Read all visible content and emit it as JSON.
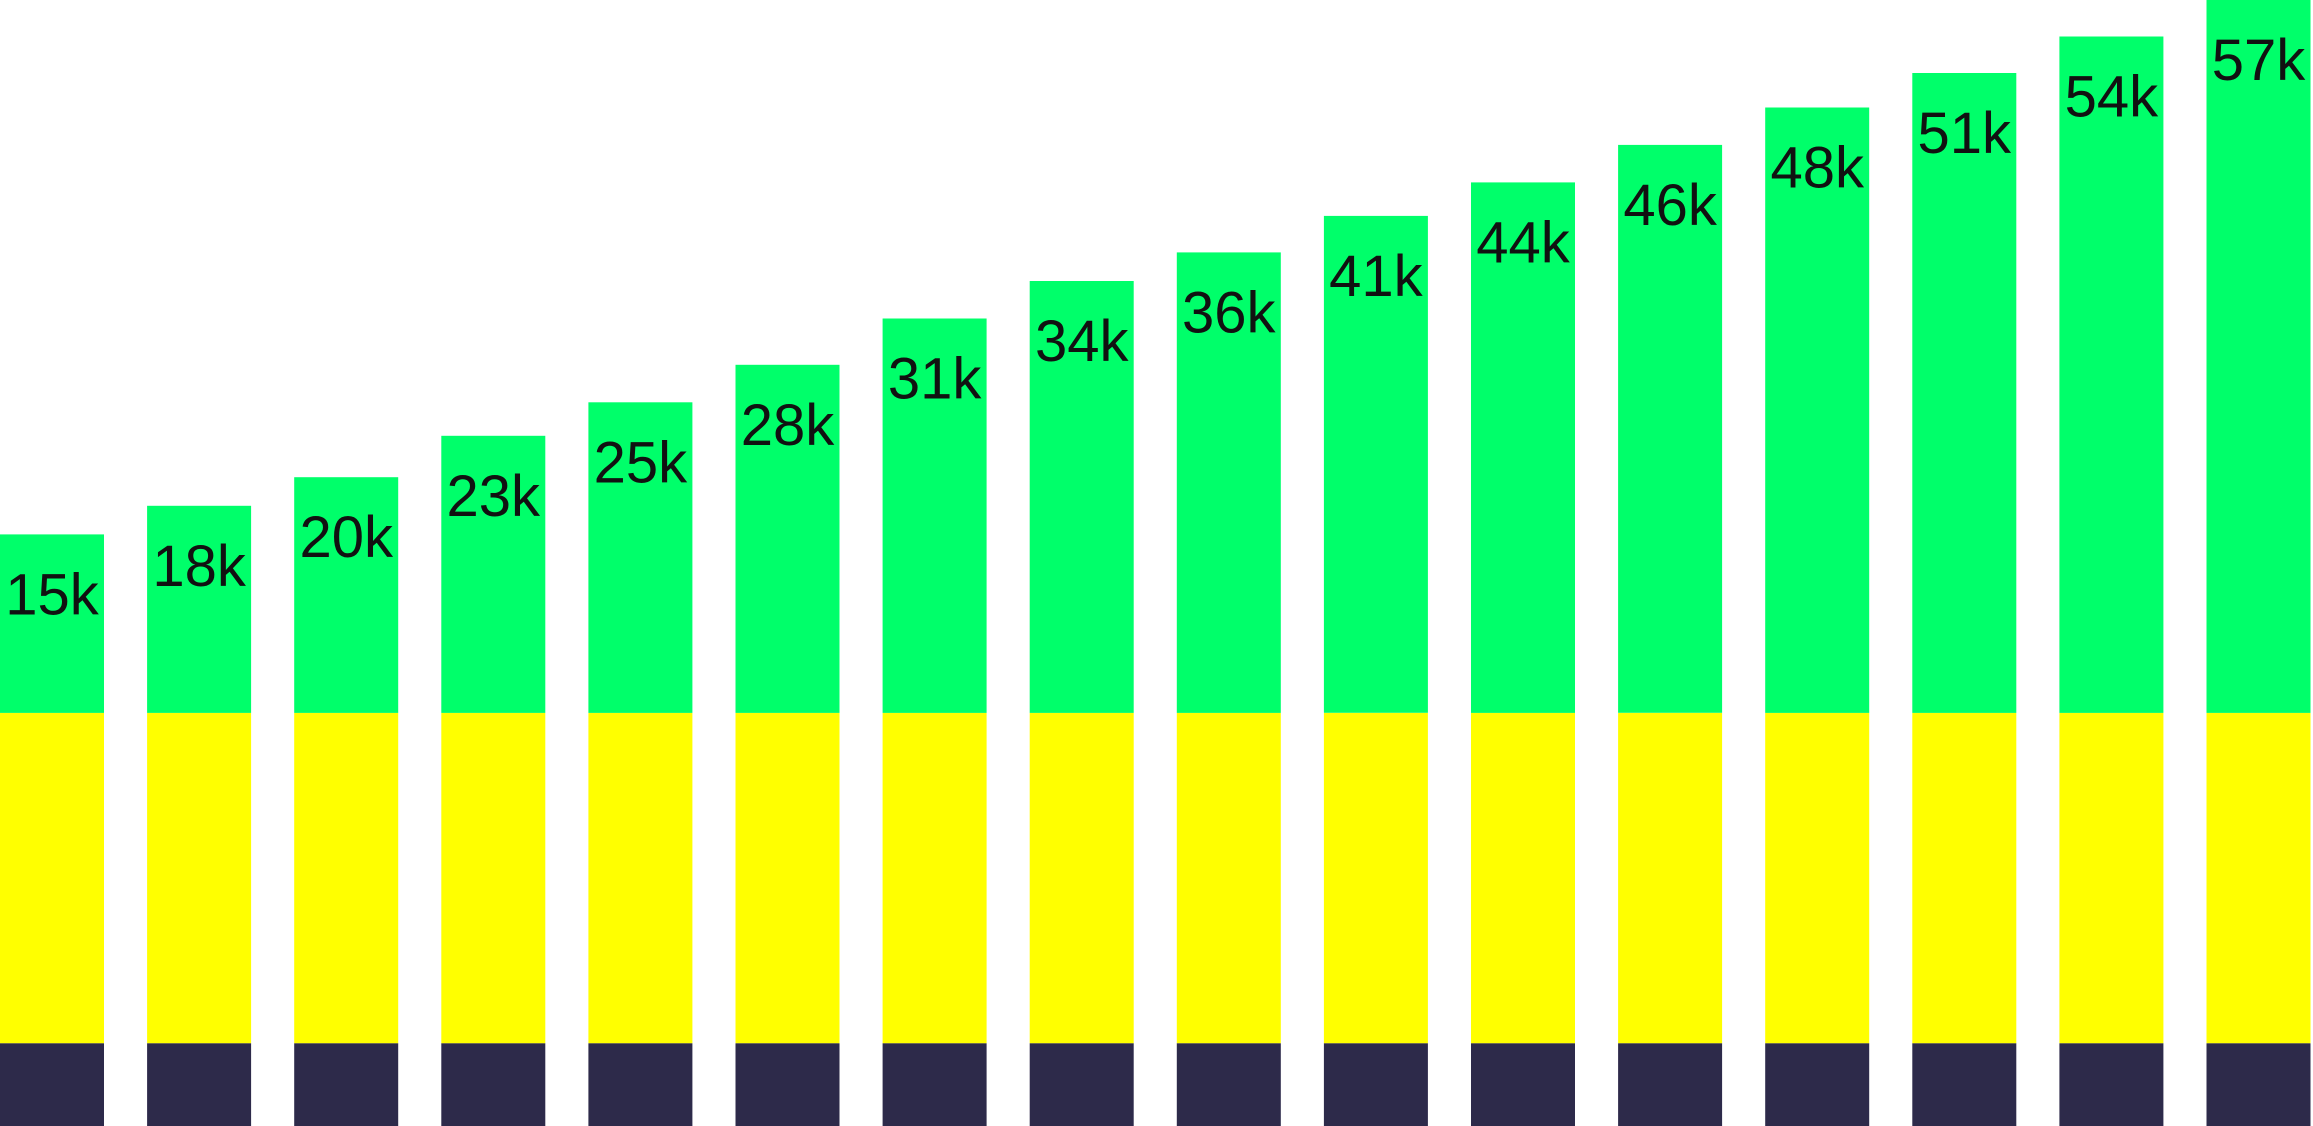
{
  "chart_data": {
    "type": "bar",
    "stacked": true,
    "categories": [
      "",
      "",
      "",
      "",
      "",
      "",
      "",
      "",
      "",
      "",
      "",
      "",
      "",
      "",
      "",
      ""
    ],
    "series": [
      {
        "color": "#2d2a4a",
        "values": [
          0.84,
          0.84,
          0.84,
          0.84,
          0.84,
          0.84,
          0.84,
          0.84,
          0.84,
          0.84,
          0.84,
          0.84,
          0.84,
          0.84,
          0.84,
          0.84
        ]
      },
      {
        "color": "#ffff00",
        "values": [
          3.35,
          3.35,
          3.35,
          3.35,
          3.35,
          3.35,
          3.35,
          3.35,
          3.35,
          3.35,
          3.35,
          3.35,
          3.35,
          3.35,
          3.35,
          3.35
        ]
      },
      {
        "color": "#00ff6a",
        "values": [
          1.81,
          2.1,
          2.39,
          2.81,
          3.15,
          3.53,
          4.0,
          4.38,
          4.67,
          5.04,
          5.38,
          5.76,
          6.14,
          6.49,
          6.86,
          7.23
        ],
        "labels": [
          "15k",
          "18k",
          "20k",
          "23k",
          "25k",
          "28k",
          "31k",
          "34k",
          "36k",
          "41k",
          "44k",
          "46k",
          "48k",
          "51k",
          "54k",
          "57k"
        ]
      }
    ],
    "ylim": [
      0,
      11.42
    ],
    "grid": false,
    "legend": "none"
  }
}
